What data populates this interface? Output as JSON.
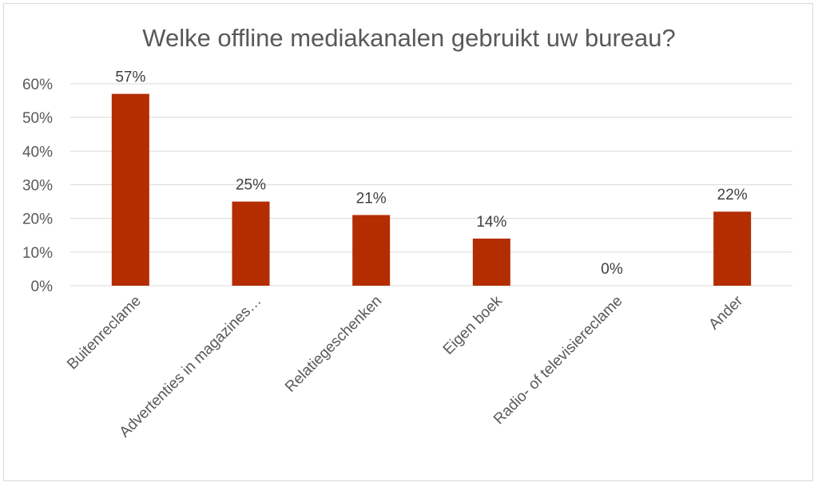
{
  "chart_data": {
    "type": "bar",
    "title": "Welke offline mediakanalen gebruikt uw bureau?",
    "categories": [
      "Buitenreclame",
      "Advertenties in magazines…",
      "Relatiegeschenken",
      "Eigen boek",
      "Radio- of televisiereclame",
      "Ander"
    ],
    "values": [
      57,
      25,
      21,
      14,
      0,
      22
    ],
    "data_labels": [
      "57%",
      "25%",
      "21%",
      "14%",
      "0%",
      "22%"
    ],
    "y_ticks": [
      "0%",
      "10%",
      "20%",
      "30%",
      "40%",
      "50%",
      "60%"
    ],
    "ylim": [
      0,
      60
    ],
    "grid": true,
    "legend": "none",
    "bar_color": "#b32d00",
    "grid_color": "#d9d9d9"
  }
}
